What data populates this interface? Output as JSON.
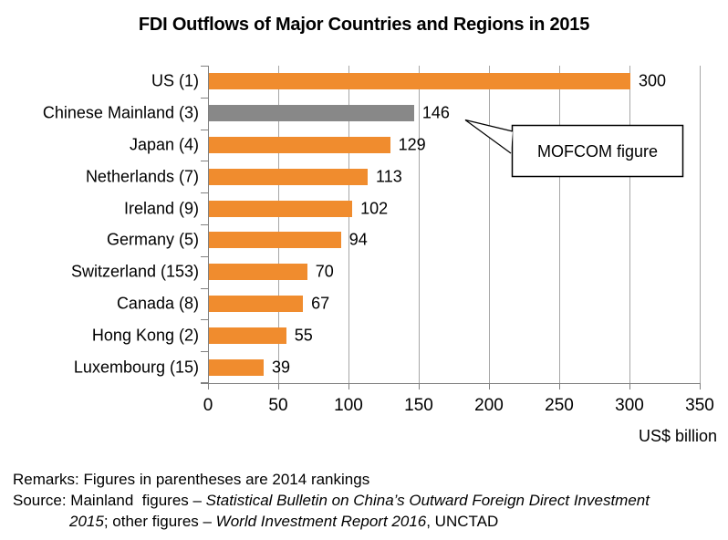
{
  "title": "FDI Outflows of Major Countries and Regions in 2015",
  "chart_data": {
    "type": "bar",
    "orientation": "horizontal",
    "title": "FDI Outflows of Major Countries and Regions in 2015",
    "categories": [
      "US (1)",
      "Chinese Mainland (3)",
      "Japan (4)",
      "Netherlands (7)",
      "Ireland (9)",
      "Germany (5)",
      "Switzerland (153)",
      "Canada (8)",
      "Hong Kong (2)",
      "Luxembourg (15)"
    ],
    "values": [
      300,
      146,
      129,
      113,
      102,
      94,
      70,
      67,
      55,
      39
    ],
    "highlight_index": 1,
    "bar_color": "#F08C2E",
    "highlight_color": "#888888",
    "grid_color": "#a6a6a6",
    "xlim": [
      0,
      350
    ],
    "x_ticks": [
      0,
      50,
      100,
      150,
      200,
      250,
      300,
      350
    ],
    "xlabel": "US$ billion",
    "grid": "vertical gridlines",
    "legend": "none",
    "annotation": {
      "text": "MOFCOM figure",
      "points_to": "Chinese Mainland (3) value 146"
    }
  },
  "callout": {
    "label": "MOFCOM figure"
  },
  "footnotes": {
    "lines": [
      {
        "indented": false,
        "segments": [
          {
            "text": "Remarks: Figures in parentheses are 2014 rankings",
            "italic": false
          }
        ]
      },
      {
        "indented": false,
        "segments": [
          {
            "text": "Source: Mainland  figures – ",
            "italic": false
          },
          {
            "text": "Statistical Bulletin on China’s Outward Foreign Direct Investment",
            "italic": true
          }
        ]
      },
      {
        "indented": true,
        "segments": [
          {
            "text": "2015",
            "italic": true
          },
          {
            "text": "; other figures – ",
            "italic": false
          },
          {
            "text": "World Investment Report 2016",
            "italic": true
          },
          {
            "text": ", UNCTAD",
            "italic": false
          }
        ]
      }
    ]
  }
}
